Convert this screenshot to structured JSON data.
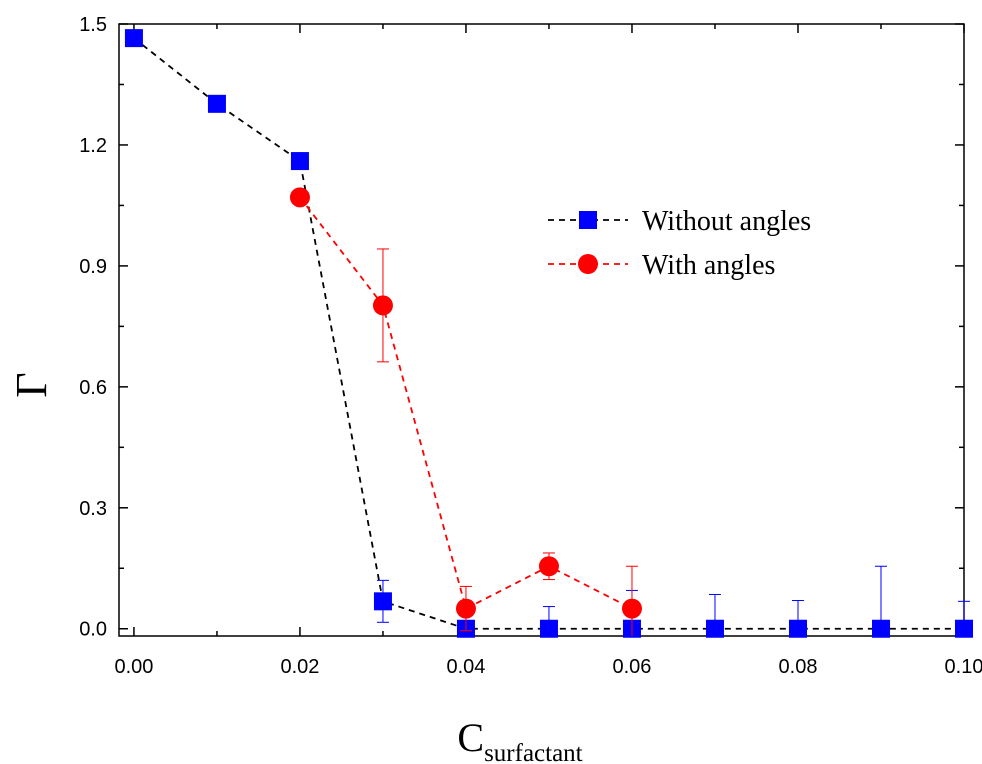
{
  "chart_data": {
    "type": "scatter",
    "title": "",
    "xlabel": "C",
    "xlabel_subscript": "surfactant",
    "ylabel": "Γ",
    "xlim": [
      -0.0018,
      0.1
    ],
    "ylim": [
      -0.018,
      1.5
    ],
    "xticks": [
      "0.00",
      "0.02",
      "0.04",
      "0.06",
      "0.08",
      "0.10"
    ],
    "xtick_values": [
      0,
      0.02,
      0.04,
      0.06,
      0.08,
      0.1
    ],
    "yticks": [
      "0.0",
      "0.3",
      "0.6",
      "0.9",
      "1.2",
      "1.5"
    ],
    "ytick_values": [
      0,
      0.3,
      0.6,
      0.9,
      1.2,
      1.5
    ],
    "grid": false,
    "legend_position": "upper-right",
    "series": [
      {
        "name": "Without angles",
        "marker": "square",
        "marker_color": "#0000ff",
        "line_color": "#000000",
        "line_style": "dashed",
        "error_bar_color": "#0000ff",
        "x": [
          0.0,
          0.01,
          0.02,
          0.03,
          0.04,
          0.05,
          0.06,
          0.07,
          0.08,
          0.09,
          0.1
        ],
        "y": [
          1.465,
          1.302,
          1.16,
          0.068,
          0.0,
          0.0,
          0.0,
          0.0,
          0.0,
          0.0,
          0.0
        ],
        "err": [
          0,
          0,
          0,
          0.052,
          0,
          0.055,
          0.095,
          0.085,
          0.07,
          0.155,
          0.068
        ]
      },
      {
        "name": "With angles",
        "marker": "circle",
        "marker_color": "#ff0000",
        "line_color": "#ff0000",
        "line_style": "dashed",
        "error_bar_color": "#ff0000",
        "x": [
          0.02,
          0.03,
          0.04,
          0.05,
          0.06
        ],
        "y": [
          1.07,
          0.802,
          0.05,
          0.155,
          0.05
        ],
        "err": [
          0,
          0.14,
          0.055,
          0.033,
          0.105
        ]
      }
    ]
  }
}
